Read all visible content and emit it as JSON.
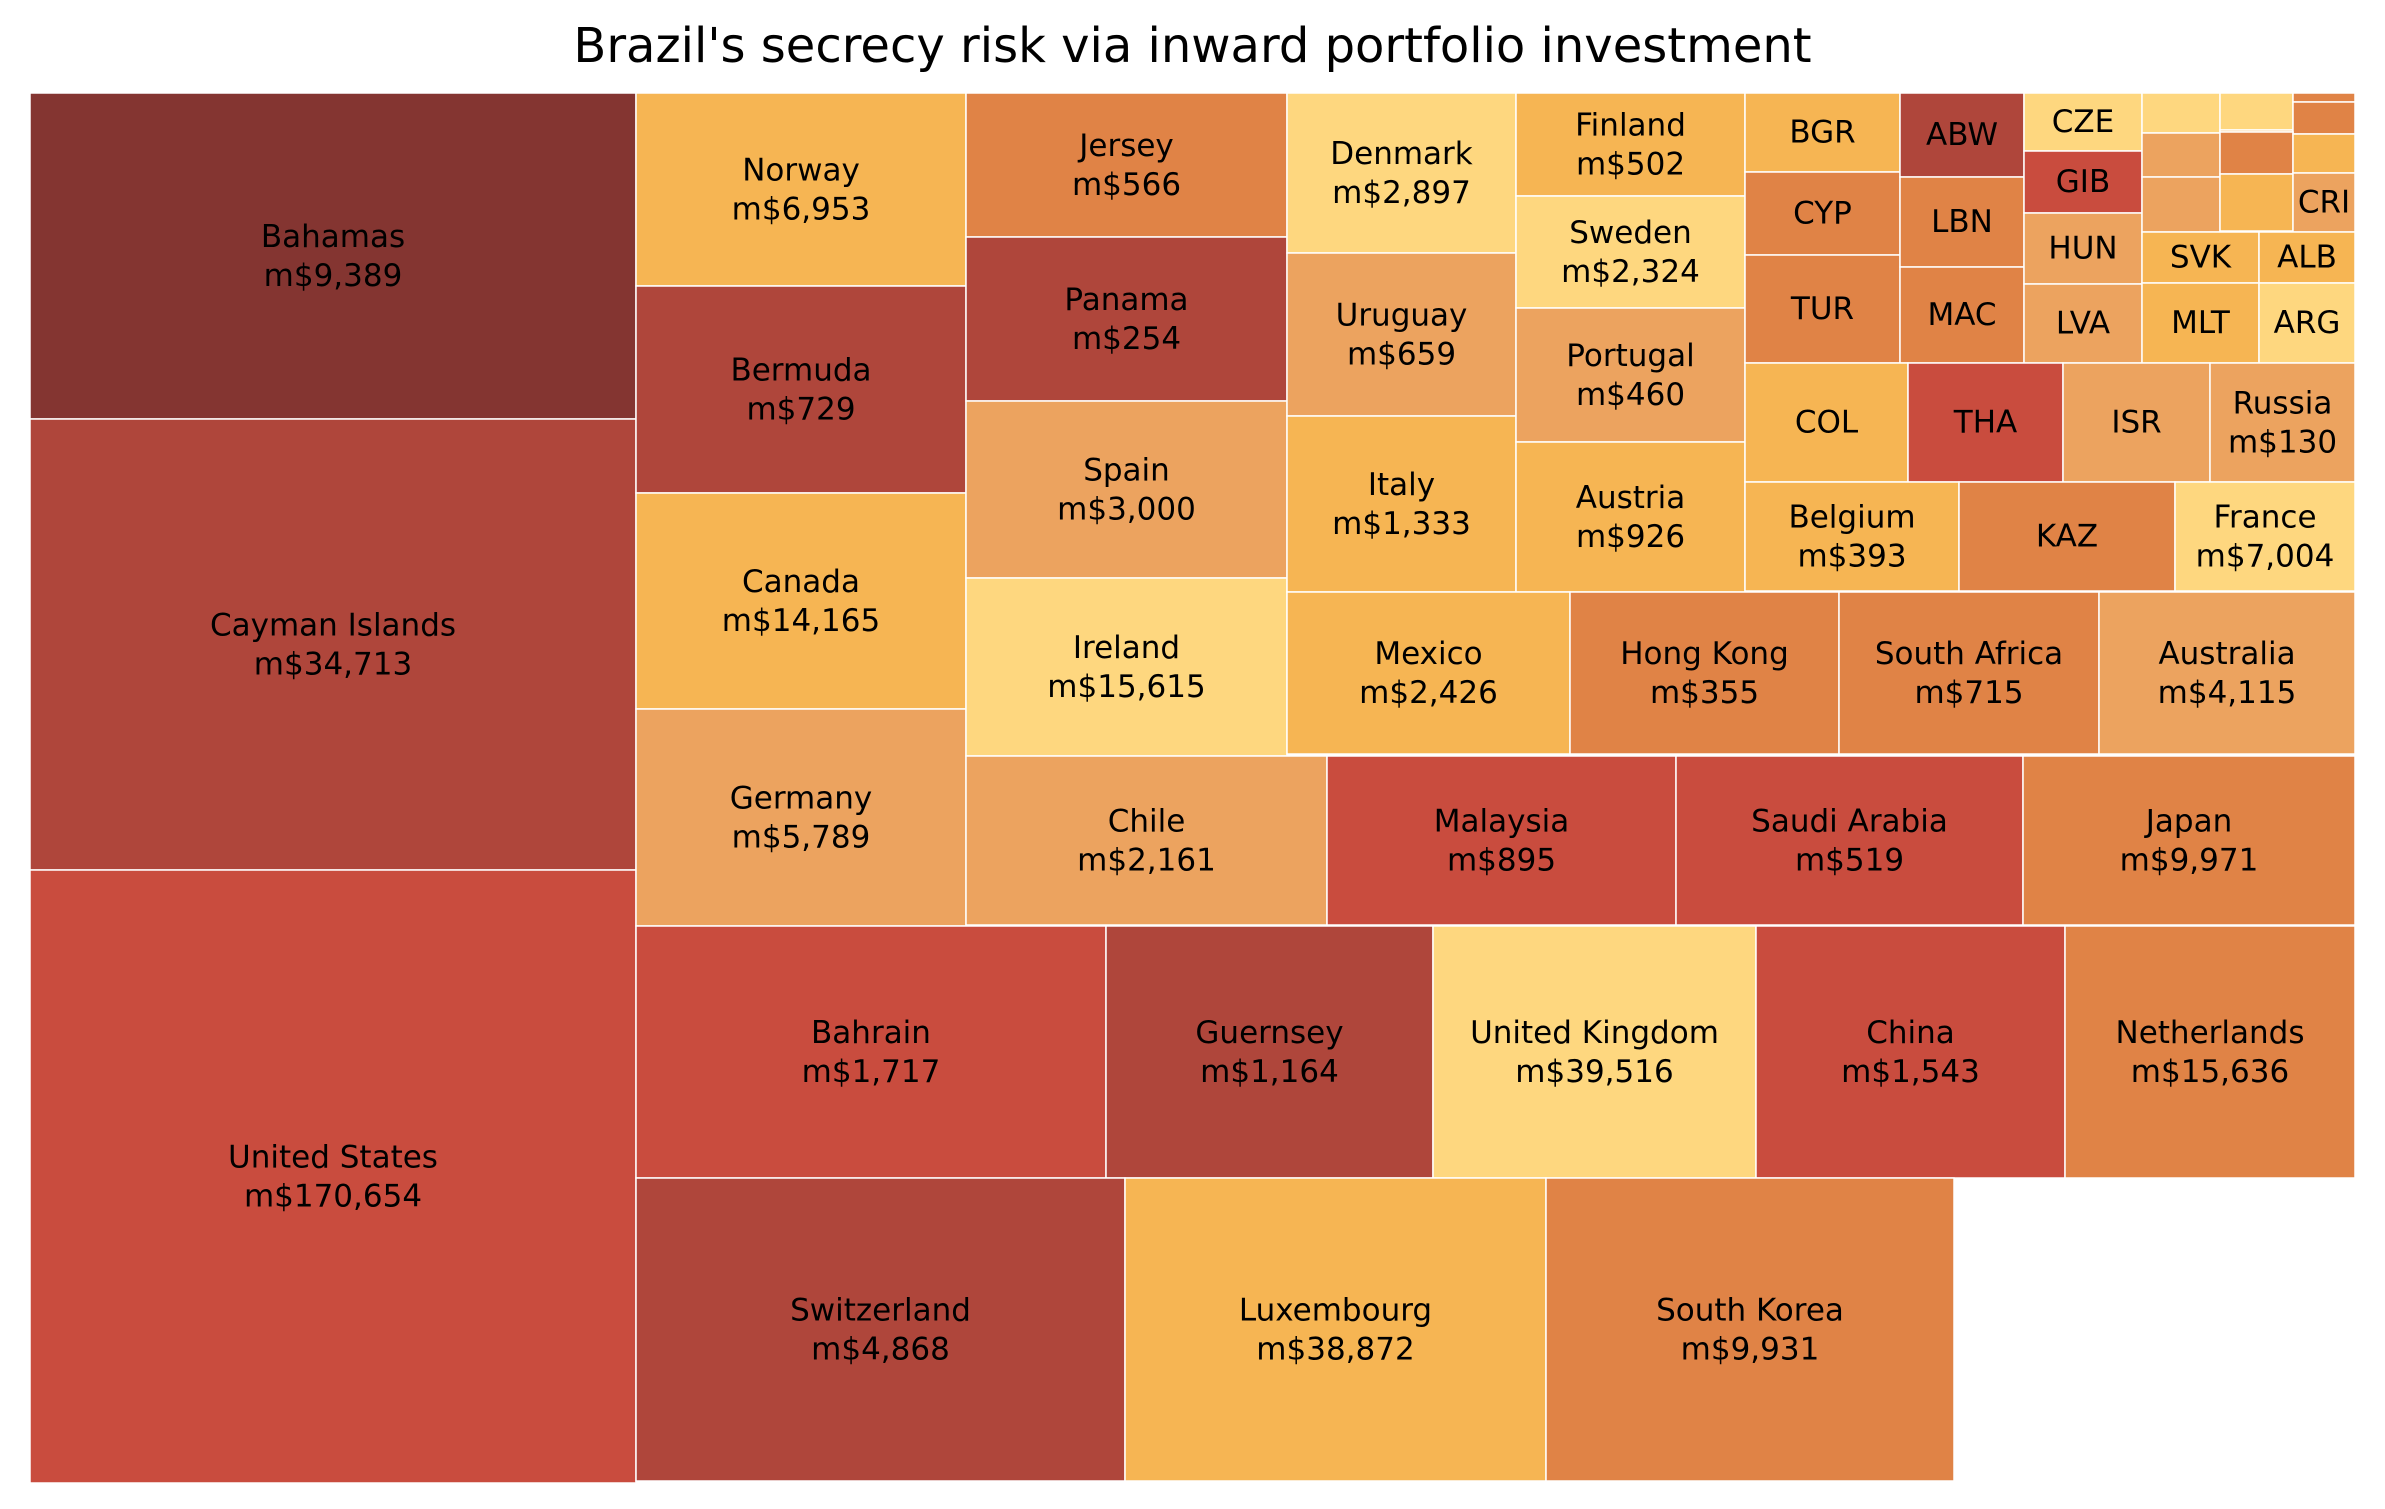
{
  "title": "Brazil's secrecy risk via inward portfolio investment",
  "chart_data": {
    "type": "treemap",
    "title": "Brazil's secrecy risk via inward portfolio investment",
    "value_prefix": "m$",
    "palette": {
      "light": "#fed77f",
      "orange": "#f6b553",
      "tan": "#eca35f",
      "dark-orange": "#e08346",
      "red": "#c94c3e",
      "dark-red": "#af463b",
      "maroon": "#843531"
    },
    "tiles": [
      {
        "label": "Bahamas",
        "value": 9389,
        "color": "#843531"
      },
      {
        "label": "Cayman Islands",
        "value": 34713,
        "color": "#af463b"
      },
      {
        "label": "United States",
        "value": 170654,
        "color": "#c94c3e"
      },
      {
        "label": "Norway",
        "value": 6953,
        "color": "#f6b553"
      },
      {
        "label": "Bermuda",
        "value": 729,
        "color": "#af463b"
      },
      {
        "label": "Canada",
        "value": 14165,
        "color": "#f6b553"
      },
      {
        "label": "Germany",
        "value": 5789,
        "color": "#eca35f"
      },
      {
        "label": "Jersey",
        "value": 566,
        "color": "#e08346"
      },
      {
        "label": "Panama",
        "value": 254,
        "color": "#af463b"
      },
      {
        "label": "Spain",
        "value": 3000,
        "color": "#eca35f"
      },
      {
        "label": "Ireland",
        "value": 15615,
        "color": "#fed77f"
      },
      {
        "label": "Denmark",
        "value": 2897,
        "color": "#fed77f"
      },
      {
        "label": "Uruguay",
        "value": 659,
        "color": "#eca35f"
      },
      {
        "label": "Italy",
        "value": 1333,
        "color": "#f6b553"
      },
      {
        "label": "Finland",
        "value": 502,
        "color": "#f6b553"
      },
      {
        "label": "Sweden",
        "value": 2324,
        "color": "#fed77f"
      },
      {
        "label": "Portugal",
        "value": 460,
        "color": "#eca35f"
      },
      {
        "label": "Austria",
        "value": 926,
        "color": "#f6b553"
      },
      {
        "label": "BGR",
        "color": "#f6b553"
      },
      {
        "label": "CYP",
        "color": "#e08346"
      },
      {
        "label": "TUR",
        "color": "#e08346"
      },
      {
        "label": "ABW",
        "color": "#af463b"
      },
      {
        "label": "LBN",
        "color": "#e08346"
      },
      {
        "label": "MAC",
        "color": "#e08346"
      },
      {
        "label": "CZE",
        "color": "#fed77f"
      },
      {
        "label": "GIB",
        "color": "#c94c3e"
      },
      {
        "label": "HUN",
        "color": "#eca35f"
      },
      {
        "label": "LVA",
        "color": "#eca35f"
      },
      {
        "label": "",
        "color": "#fed77f"
      },
      {
        "label": "",
        "color": "#fed77f"
      },
      {
        "label": "",
        "color": "#f6b553"
      },
      {
        "label": "",
        "color": "#e08346"
      },
      {
        "label": "",
        "color": "#e08346"
      },
      {
        "label": "",
        "color": "#eca35f"
      },
      {
        "label": "",
        "color": "#e08346"
      },
      {
        "label": "",
        "color": "#f6b553"
      },
      {
        "label": "",
        "color": "#eca35f"
      },
      {
        "label": "",
        "color": "#f6b553"
      },
      {
        "label": "CRI",
        "color": "#eca35f"
      },
      {
        "label": "SVK",
        "color": "#f6b553"
      },
      {
        "label": "ALB",
        "color": "#f6b553"
      },
      {
        "label": "MLT",
        "color": "#f6b553"
      },
      {
        "label": "ARG",
        "color": "#fed77f"
      },
      {
        "label": "COL",
        "color": "#f6b553"
      },
      {
        "label": "THA",
        "color": "#c94c3e"
      },
      {
        "label": "ISR",
        "color": "#eca35f"
      },
      {
        "label": "Russia",
        "value": 130,
        "color": "#eca35f"
      },
      {
        "label": "Belgium",
        "value": 393,
        "color": "#f6b553"
      },
      {
        "label": "KAZ",
        "color": "#e08346"
      },
      {
        "label": "France",
        "value": 7004,
        "color": "#fed77f"
      },
      {
        "label": "Mexico",
        "value": 2426,
        "color": "#f6b553"
      },
      {
        "label": "Hong Kong",
        "value": 355,
        "color": "#e08346"
      },
      {
        "label": "South Africa",
        "value": 715,
        "color": "#e08346"
      },
      {
        "label": "Australia",
        "value": 4115,
        "color": "#eca35f"
      },
      {
        "label": "Chile",
        "value": 2161,
        "color": "#eca35f"
      },
      {
        "label": "Malaysia",
        "value": 895,
        "color": "#c94c3e"
      },
      {
        "label": "Saudi Arabia",
        "value": 519,
        "color": "#c94c3e"
      },
      {
        "label": "Japan",
        "value": 9971,
        "color": "#e08346"
      },
      {
        "label": "Bahrain",
        "value": 1717,
        "color": "#c94c3e"
      },
      {
        "label": "Guernsey",
        "value": 1164,
        "color": "#af463b"
      },
      {
        "label": "United Kingdom",
        "value": 39516,
        "color": "#fed77f"
      },
      {
        "label": "China",
        "value": 1543,
        "color": "#c94c3e"
      },
      {
        "label": "Netherlands",
        "value": 15636,
        "color": "#e08346"
      },
      {
        "label": "Switzerland",
        "value": 4868,
        "color": "#af463b"
      },
      {
        "label": "Luxembourg",
        "value": 38872,
        "color": "#f6b553"
      },
      {
        "label": "South Korea",
        "value": 9931,
        "color": "#e08346"
      }
    ]
  }
}
